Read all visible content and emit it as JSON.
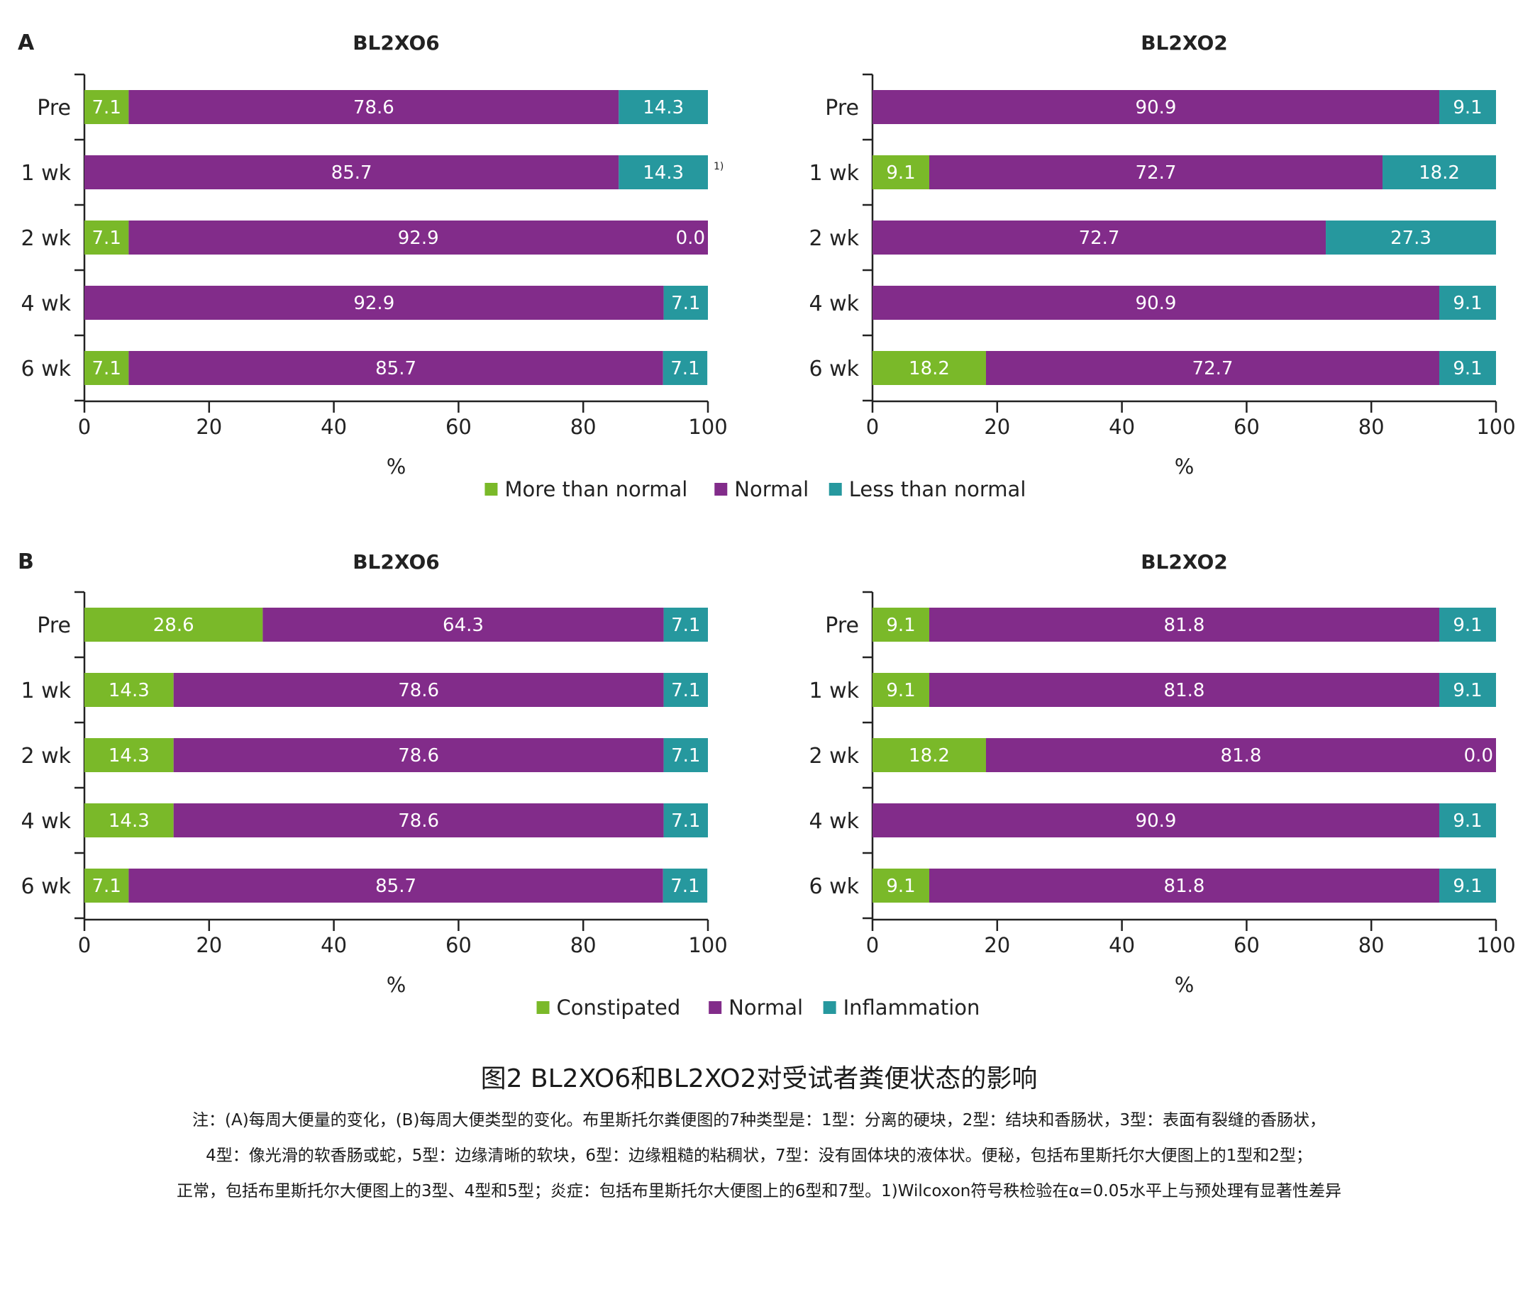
{
  "colors": {
    "green": "#7AB929",
    "purple": "#822C8A",
    "teal": "#26989E",
    "axis": "#222222"
  },
  "chart_data": [
    {
      "type": "bar",
      "orientation": "horizontal",
      "stacked": true,
      "panel": "A",
      "title": "BL2XO6",
      "categories": [
        "Pre",
        "1 wk",
        "2 wk",
        "4 wk",
        "6 wk"
      ],
      "series": [
        {
          "name": "More than normal",
          "values": [
            7.1,
            0.0,
            7.1,
            0.0,
            7.1
          ]
        },
        {
          "name": "Normal",
          "values": [
            78.6,
            85.7,
            92.9,
            92.9,
            85.7
          ]
        },
        {
          "name": "Less than normal",
          "values": [
            14.3,
            14.3,
            0.0,
            7.1,
            7.1
          ]
        }
      ],
      "annotations": [
        {
          "category": "1 wk",
          "text": "1)"
        }
      ],
      "xlabel": "%",
      "xlim": [
        0,
        100
      ],
      "xticks": [
        "0",
        "20",
        "40",
        "60",
        "80",
        "100"
      ]
    },
    {
      "type": "bar",
      "orientation": "horizontal",
      "stacked": true,
      "panel": "",
      "title": "BL2XO2",
      "categories": [
        "Pre",
        "1 wk",
        "2 wk",
        "4 wk",
        "6 wk"
      ],
      "series": [
        {
          "name": "More than normal",
          "values": [
            0.0,
            9.1,
            0.0,
            0.0,
            18.2
          ]
        },
        {
          "name": "Normal",
          "values": [
            90.9,
            72.7,
            72.7,
            90.9,
            72.7
          ]
        },
        {
          "name": "Less than normal",
          "values": [
            9.1,
            18.2,
            27.3,
            9.1,
            9.1
          ]
        }
      ],
      "annotations": [],
      "xlabel": "%",
      "xlim": [
        0,
        100
      ],
      "xticks": [
        "0",
        "20",
        "40",
        "60",
        "80",
        "100"
      ]
    },
    {
      "type": "bar",
      "orientation": "horizontal",
      "stacked": true,
      "panel": "B",
      "title": "BL2XO6",
      "categories": [
        "Pre",
        "1 wk",
        "2 wk",
        "4 wk",
        "6 wk"
      ],
      "series": [
        {
          "name": "Constipated",
          "values": [
            28.6,
            14.3,
            14.3,
            14.3,
            7.1
          ]
        },
        {
          "name": "Normal",
          "values": [
            64.3,
            78.6,
            78.6,
            78.6,
            85.7
          ]
        },
        {
          "name": "Inflammation",
          "values": [
            7.1,
            7.1,
            7.1,
            7.1,
            7.1
          ]
        }
      ],
      "annotations": [],
      "xlabel": "%",
      "xlim": [
        0,
        100
      ],
      "xticks": [
        "0",
        "20",
        "40",
        "60",
        "80",
        "100"
      ]
    },
    {
      "type": "bar",
      "orientation": "horizontal",
      "stacked": true,
      "panel": "",
      "title": "BL2XO2",
      "categories": [
        "Pre",
        "1 wk",
        "2 wk",
        "4 wk",
        "6 wk"
      ],
      "series": [
        {
          "name": "Constipated",
          "values": [
            9.1,
            9.1,
            18.2,
            0.0,
            9.1
          ]
        },
        {
          "name": "Normal",
          "values": [
            81.8,
            81.8,
            81.8,
            90.9,
            81.8
          ]
        },
        {
          "name": "Inflammation",
          "values": [
            9.1,
            9.1,
            0.0,
            9.1,
            9.1
          ]
        }
      ],
      "annotations": [],
      "xlabel": "%",
      "xlim": [
        0,
        100
      ],
      "xticks": [
        "0",
        "20",
        "40",
        "60",
        "80",
        "100"
      ]
    }
  ],
  "legends": [
    {
      "entries": [
        "More than normal",
        "Normal",
        "Less than normal"
      ]
    },
    {
      "entries": [
        "Constipated",
        "Normal",
        "Inflammation"
      ]
    }
  ],
  "caption": {
    "title": "图2 BL2XO6和BL2XO2对受试者粪便状态的影响",
    "note_line1": "注：(A)每周大便量的变化，(B)每周大便类型的变化。布里斯托尔粪便图的7种类型是：1型：分离的硬块，2型：结块和香肠状，3型：表面有裂缝的香肠状，",
    "note_line2": "4型：像光滑的软香肠或蛇，5型：边缘清晰的软块，6型：边缘粗糙的粘稠状，7型：没有固体块的液体状。便秘，包括布里斯托尔大便图上的1型和2型；",
    "note_line3": "正常，包括布里斯托尔大便图上的3型、4型和5型；炎症：包括布里斯托尔大便图上的6型和7型。1)Wilcoxon符号秩检验在α=0.05水平上与预处理有显著性差异"
  }
}
